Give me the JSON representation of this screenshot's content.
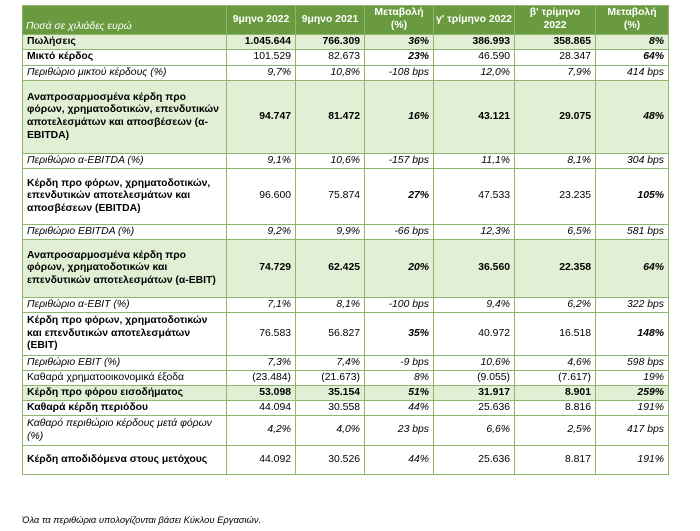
{
  "header": {
    "label": "Ποσά σε χιλιάδες ευρώ",
    "col1": "9μηνο 2022",
    "col2": "9μηνο 2021",
    "col3": "Μεταβολή (%)",
    "col4": "γ' τρίμηνο 2022",
    "col5": "β' τρίμηνο 2022",
    "col6": "Μεταβολή (%)"
  },
  "rows": [
    {
      "label": "Πωλήσεις",
      "v1": "1.045.644",
      "v2": "766.309",
      "v3": "36%",
      "v4": "386.993",
      "v5": "358.865",
      "v6": "8%"
    },
    {
      "label": "Μικτό κέρδος",
      "v1": "101.529",
      "v2": "82.673",
      "v3": "23%",
      "v4": "46.590",
      "v5": "28.347",
      "v6": "64%"
    },
    {
      "label": "Περιθώριο μικτού κέρδους (%)",
      "v1": "9,7%",
      "v2": "10,8%",
      "v3": "-108 bps",
      "v4": "12,0%",
      "v5": "7,9%",
      "v6": "414 bps"
    },
    {
      "label": "Αναπροσαρμοσμένα κέρδη προ φόρων, χρηματοδοτικών, επενδυτικών αποτελεσμάτων και αποσβέσεων (α-EBITDA)",
      "v1": "94.747",
      "v2": "81.472",
      "v3": "16%",
      "v4": "43.121",
      "v5": "29.075",
      "v6": "48%"
    },
    {
      "label": "Περιθώριο α-EBITDA (%)",
      "v1": "9,1%",
      "v2": "10,6%",
      "v3": "-157 bps",
      "v4": "11,1%",
      "v5": "8,1%",
      "v6": "304 bps"
    },
    {
      "label": "Κέρδη προ φόρων, χρηματοδοτικών, επενδυτικών αποτελεσμάτων και αποσβέσεων (EBITDA)",
      "v1": "96.600",
      "v2": "75.874",
      "v3": "27%",
      "v4": "47.533",
      "v5": "23.235",
      "v6": "105%"
    },
    {
      "label": "Περιθώριο EBITDA (%)",
      "v1": "9,2%",
      "v2": "9,9%",
      "v3": "-66 bps",
      "v4": "12,3%",
      "v5": "6,5%",
      "v6": "581 bps"
    },
    {
      "label": "Αναπροσαρμοσμένα κέρδη προ φόρων, χρηματοδοτικών και επενδυτικών αποτελεσμάτων (α-EBIT)",
      "v1": "74.729",
      "v2": "62.425",
      "v3": "20%",
      "v4": "36.560",
      "v5": "22.358",
      "v6": "64%"
    },
    {
      "label": "Περιθώριο α-EBIT (%)",
      "v1": "7,1%",
      "v2": "8,1%",
      "v3": "-100 bps",
      "v4": "9,4%",
      "v5": "6,2%",
      "v6": "322 bps"
    },
    {
      "label": "Κέρδη προ φόρων, χρηματοδοτικών και επενδυτικών αποτελεσμάτων (EBIT)",
      "v1": "76.583",
      "v2": "56.827",
      "v3": "35%",
      "v4": "40.972",
      "v5": "16.518",
      "v6": "148%"
    },
    {
      "label": "Περιθώριο EBIT (%)",
      "v1": "7,3%",
      "v2": "7,4%",
      "v3": "-9 bps",
      "v4": "10,6%",
      "v5": "4,6%",
      "v6": "598 bps"
    },
    {
      "label": "Καθαρά χρηματοοικονομικά έξοδα",
      "v1": "(23.484)",
      "v2": "(21.673)",
      "v3": "8%",
      "v4": "(9.055)",
      "v5": "(7.617)",
      "v6": "19%"
    },
    {
      "label": "Κέρδη προ φόρου εισοδήματος",
      "v1": "53.098",
      "v2": "35.154",
      "v3": "51%",
      "v4": "31.917",
      "v5": "8.901",
      "v6": "259%"
    },
    {
      "label": "Καθαρά κέρδη περιόδου",
      "v1": "44.094",
      "v2": "30.558",
      "v3": "44%",
      "v4": "25.636",
      "v5": "8.816",
      "v6": "191%"
    },
    {
      "label": "Καθαρό περιθώριο κέρδους μετά φόρων (%)",
      "v1": "4,2%",
      "v2": "4,0%",
      "v3": "23 bps",
      "v4": "6,6%",
      "v5": "2,5%",
      "v6": "417 bps"
    },
    {
      "label": "Κέρδη αποδιδόμενα στους μετόχους",
      "v1": "44.092",
      "v2": "30.526",
      "v3": "44%",
      "v4": "25.636",
      "v5": "8.817",
      "v6": "191%"
    }
  ],
  "footnote": "Όλα τα περιθώρια υπολογίζονται βάσει Κύκλου Εργασιών.",
  "colors": {
    "header_bg": "#6a9a3f",
    "highlight_bg": "#e1efd5",
    "border": "#8fb56f"
  }
}
